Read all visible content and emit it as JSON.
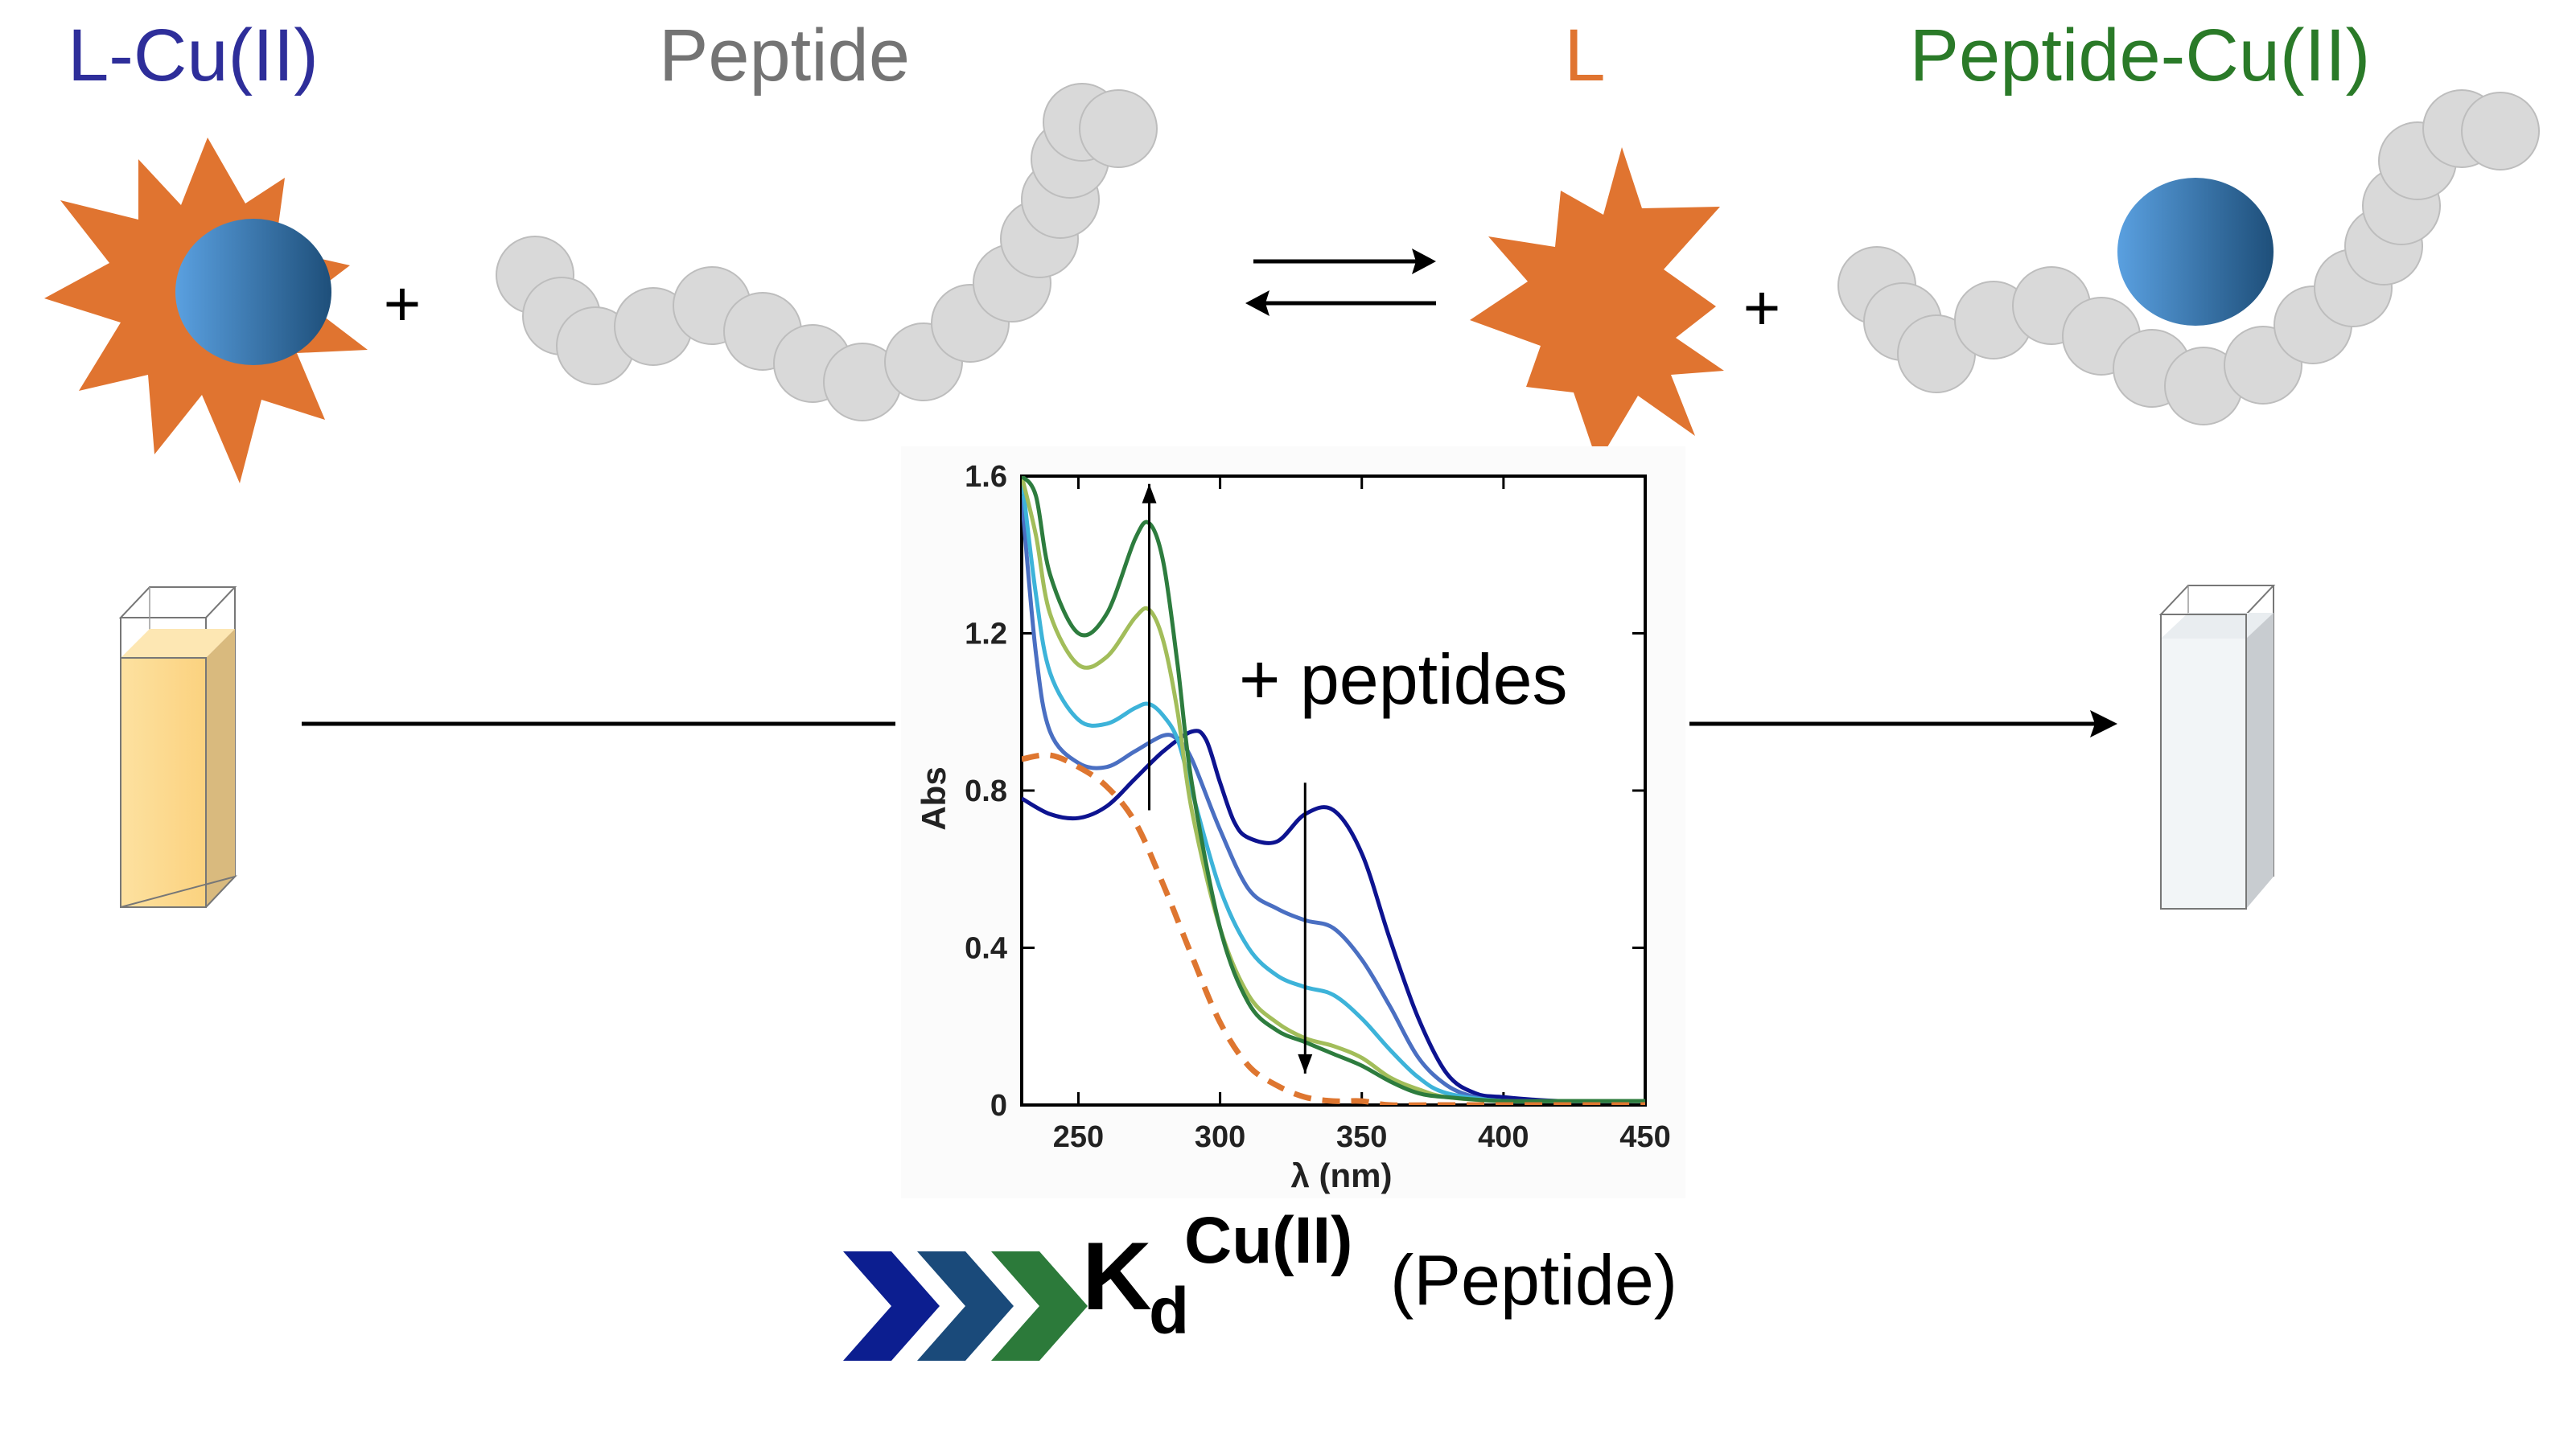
{
  "reaction": {
    "reactant_complex": {
      "label": "L-Cu(II)",
      "color": "#2e2e9a"
    },
    "reactant_peptide": {
      "label": "Peptide",
      "color": "#747474"
    },
    "product_ligand": {
      "label": "L",
      "color": "#e07430"
    },
    "product_complex": {
      "label": "Peptide-Cu(II)",
      "color": "#2a7a28"
    },
    "plus_left": "+",
    "plus_right": "+",
    "equilibrium": "reversible"
  },
  "cuvettes": {
    "left": {
      "contents": "yellow solution",
      "color": "#fddb8f"
    },
    "right": {
      "contents": "colorless solution",
      "color": "#f2f5f7"
    }
  },
  "annotation": {
    "text": "+ peptides"
  },
  "result": {
    "k": "K",
    "subscript": "d",
    "superscript": "Cu(II)",
    "paren": "(Peptide)",
    "chevron_colors": [
      "#0c1e90",
      "#1a4a7a",
      "#2c7a3a"
    ]
  },
  "colors": {
    "star": "#e07430",
    "copper_light": "#5aa0e0",
    "copper_dark": "#1e4f7a",
    "bead_fill": "#d9d9d9",
    "bead_stroke": "#bdbdbd"
  },
  "chart_data": {
    "type": "line",
    "title": "",
    "xlabel": "λ (nm)",
    "ylabel": "Abs",
    "xlim": [
      230,
      450
    ],
    "ylim": [
      0,
      1.6
    ],
    "xticks": [
      250,
      300,
      350,
      400,
      450
    ],
    "yticks": [
      0,
      0.4,
      0.8,
      1.2,
      1.6
    ],
    "xtick_labels": [
      "250",
      "300",
      "350",
      "400",
      "450"
    ],
    "ytick_labels": [
      "0",
      "0.4",
      "0.8",
      "1.2",
      "1.6"
    ],
    "grid": false,
    "series": [
      {
        "color": "#0d1390",
        "dashed": false,
        "x": [
          230,
          240,
          250,
          260,
          270,
          280,
          290,
          295,
          300,
          305,
          310,
          320,
          330,
          340,
          350,
          360,
          370,
          380,
          390,
          400,
          420,
          450
        ],
        "y": [
          0.78,
          0.74,
          0.73,
          0.76,
          0.83,
          0.9,
          0.95,
          0.93,
          0.82,
          0.72,
          0.68,
          0.67,
          0.74,
          0.75,
          0.64,
          0.42,
          0.22,
          0.08,
          0.03,
          0.02,
          0.01,
          0.01
        ]
      },
      {
        "color": "#4a6fc2",
        "dashed": false,
        "x": [
          230,
          235,
          240,
          250,
          260,
          270,
          280,
          285,
          290,
          300,
          310,
          320,
          330,
          340,
          350,
          360,
          370,
          380,
          390,
          400,
          420,
          450
        ],
        "y": [
          1.55,
          1.15,
          0.95,
          0.87,
          0.86,
          0.9,
          0.94,
          0.93,
          0.88,
          0.7,
          0.55,
          0.5,
          0.47,
          0.45,
          0.37,
          0.25,
          0.12,
          0.05,
          0.02,
          0.01,
          0.01,
          0.01
        ]
      },
      {
        "color": "#3db3d9",
        "dashed": false,
        "x": [
          230,
          235,
          240,
          250,
          260,
          270,
          275,
          280,
          285,
          290,
          300,
          310,
          320,
          330,
          340,
          350,
          360,
          370,
          380,
          400,
          420,
          450
        ],
        "y": [
          1.6,
          1.3,
          1.1,
          0.98,
          0.97,
          1.01,
          1.02,
          0.99,
          0.93,
          0.8,
          0.55,
          0.4,
          0.33,
          0.3,
          0.28,
          0.22,
          0.14,
          0.07,
          0.03,
          0.01,
          0.01,
          0.01
        ]
      },
      {
        "color": "#a2bd5a",
        "dashed": false,
        "x": [
          230,
          235,
          240,
          250,
          260,
          270,
          275,
          280,
          285,
          290,
          300,
          310,
          320,
          330,
          340,
          350,
          360,
          370,
          380,
          400,
          420,
          450
        ],
        "y": [
          1.6,
          1.45,
          1.25,
          1.12,
          1.14,
          1.24,
          1.26,
          1.18,
          1.0,
          0.75,
          0.45,
          0.28,
          0.21,
          0.17,
          0.15,
          0.12,
          0.07,
          0.04,
          0.02,
          0.01,
          0.01,
          0.01
        ]
      },
      {
        "color": "#2d7c3e",
        "dashed": false,
        "x": [
          230,
          235,
          240,
          250,
          260,
          270,
          275,
          280,
          285,
          290,
          300,
          310,
          320,
          330,
          340,
          350,
          360,
          370,
          380,
          400,
          420,
          450
        ],
        "y": [
          1.6,
          1.55,
          1.35,
          1.2,
          1.25,
          1.44,
          1.48,
          1.38,
          1.12,
          0.82,
          0.45,
          0.26,
          0.19,
          0.16,
          0.13,
          0.1,
          0.06,
          0.03,
          0.02,
          0.01,
          0.01,
          0.01
        ]
      },
      {
        "color": "#de7630",
        "dashed": true,
        "x": [
          230,
          240,
          250,
          260,
          270,
          280,
          290,
          300,
          310,
          320,
          330,
          340,
          350,
          360,
          380,
          450
        ],
        "y": [
          0.88,
          0.89,
          0.86,
          0.81,
          0.72,
          0.56,
          0.38,
          0.21,
          0.1,
          0.05,
          0.02,
          0.01,
          0.01,
          0.0,
          0.0,
          0.0
        ]
      }
    ],
    "arrows": [
      {
        "x": 275,
        "from": 0.75,
        "to": 1.58,
        "direction": "up"
      },
      {
        "x": 330,
        "from": 0.82,
        "to": 0.08,
        "direction": "down"
      }
    ]
  }
}
